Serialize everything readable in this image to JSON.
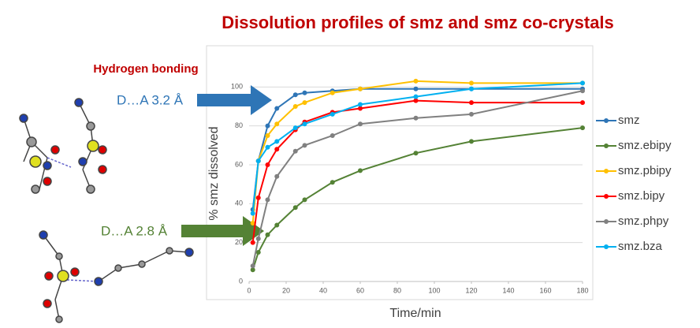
{
  "slide": {
    "heading": "Hydrogen bonding",
    "distances": [
      "D…A 3.2 Å",
      "D…A 2.8 Å"
    ]
  },
  "chart_data": {
    "type": "line",
    "title": "Dissolution profiles of smz and smz co-crystals",
    "xlabel": "Time/min",
    "ylabel": "% smz dissolved",
    "x": [
      2,
      5,
      10,
      15,
      25,
      30,
      45,
      60,
      90,
      120,
      180
    ],
    "xlim": [
      0,
      180
    ],
    "xticks": [
      0,
      20,
      40,
      60,
      80,
      100,
      120,
      140,
      160,
      180
    ],
    "ylim": [
      0,
      120
    ],
    "yticks": [
      0,
      20,
      40,
      60,
      80,
      100
    ],
    "grid": true,
    "legend": "right",
    "series": [
      {
        "name": "smz",
        "color": "#2e75b6",
        "values": [
          37,
          62,
          80,
          89,
          96,
          97,
          98,
          99,
          99,
          99,
          99
        ]
      },
      {
        "name": "smz.ebipy",
        "color": "#548235",
        "values": [
          6,
          15,
          24,
          29,
          38,
          42,
          51,
          57,
          66,
          72,
          79
        ]
      },
      {
        "name": "smz.pbipy",
        "color": "#ffc000",
        "values": [
          30,
          62,
          75,
          81,
          90,
          92,
          97,
          99,
          103,
          102,
          102
        ]
      },
      {
        "name": "smz.bipy",
        "color": "#ff0000",
        "values": [
          20,
          43,
          60,
          68,
          78,
          82,
          87,
          89,
          93,
          92,
          92
        ]
      },
      {
        "name": "smz.phpy",
        "color": "#808080",
        "values": [
          8,
          22,
          42,
          54,
          67,
          70,
          75,
          81,
          84,
          86,
          98
        ]
      },
      {
        "name": "smz.bza",
        "color": "#00b0f0",
        "values": [
          35,
          62,
          69,
          72,
          79,
          81,
          86,
          91,
          95,
          99,
          102
        ]
      }
    ]
  }
}
